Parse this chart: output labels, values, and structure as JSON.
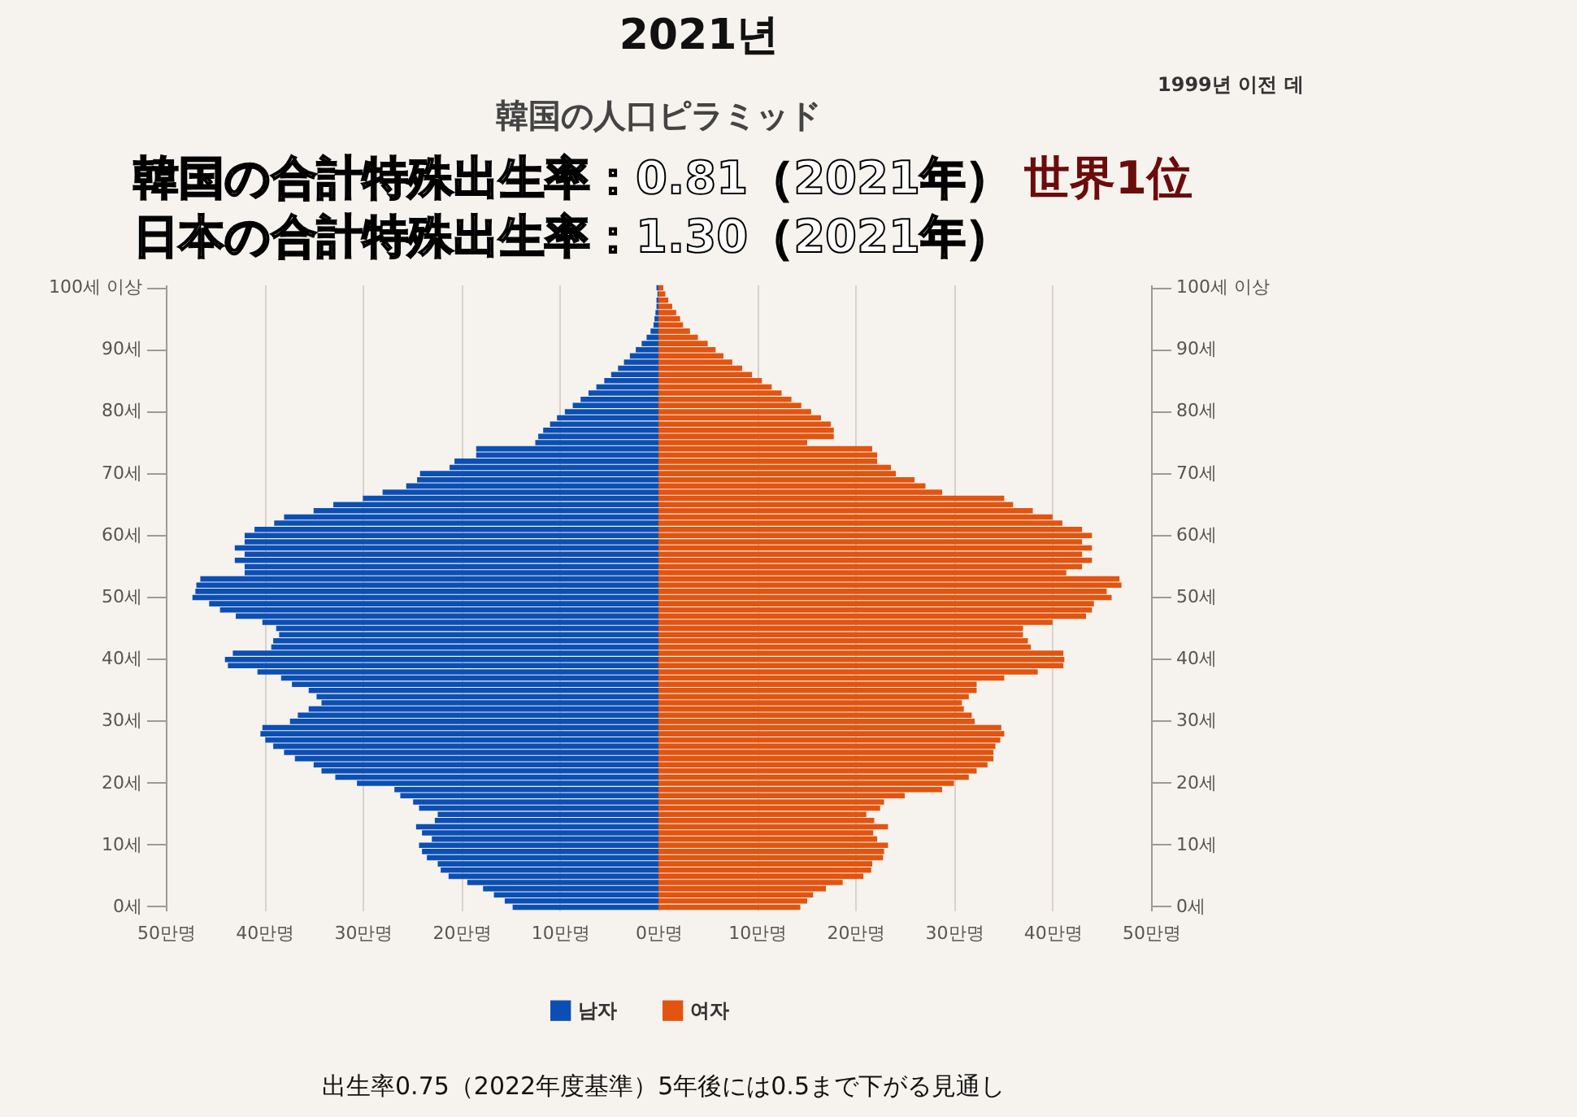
{
  "chart_data": {
    "type": "bar",
    "orientation": "horizontal",
    "stacked": true,
    "title": "韓国の人口ピラミッド",
    "annotations": [
      "2021년",
      "1999년 이전 데",
      "韓国の合計特殊出生率：0.81（2021年）",
      "世界1位",
      "日本の合計特殊出生率：1.30（2021年）",
      "出生率0.75（2022年度基準）5年後には0.5まで下がる見通し"
    ],
    "categories": [
      "100세 이상",
      null,
      null,
      null,
      null,
      null,
      null,
      null,
      null,
      null,
      "90세",
      null,
      null,
      null,
      null,
      null,
      null,
      null,
      null,
      null,
      "80세",
      null,
      null,
      null,
      null,
      null,
      null,
      null,
      null,
      null,
      "70세",
      null,
      null,
      null,
      null,
      null,
      null,
      null,
      null,
      null,
      "60세",
      null,
      null,
      null,
      null,
      null,
      null,
      null,
      null,
      null,
      "50세",
      null,
      null,
      null,
      null,
      null,
      null,
      null,
      null,
      null,
      "40세",
      null,
      null,
      null,
      null,
      null,
      null,
      null,
      null,
      null,
      "30세",
      null,
      null,
      null,
      null,
      null,
      null,
      null,
      null,
      null,
      "20세",
      null,
      null,
      null,
      null,
      null,
      null,
      null,
      null,
      null,
      "10세",
      null,
      null,
      null,
      null,
      null,
      null,
      null,
      null,
      null,
      "0세"
    ],
    "series": [
      {
        "name": "남자",
        "color": "#0b4fb5",
        "values": [
          -0.2,
          -0.1,
          -0.2,
          -0.2,
          -0.3,
          -0.4,
          -0.5,
          -0.8,
          -1.2,
          -1.7,
          -2.3,
          -2.9,
          -3.5,
          -4.1,
          -4.8,
          -5.5,
          -6.3,
          -7.1,
          -7.9,
          -8.7,
          -9.5,
          -10.3,
          -11.0,
          -11.7,
          -12.2,
          -12.5,
          -18.5,
          -18.5,
          -20.7,
          -21.2,
          -24.2,
          -24.5,
          -25.6,
          -28.0,
          -30.0,
          -33.0,
          -35.0,
          -38.0,
          -39.0,
          -41.0,
          -42.0,
          -42.0,
          -43.0,
          -42.0,
          -43.0,
          -42.0,
          -42.0,
          -46.5,
          -46.9,
          -47.0,
          -47.3,
          -45.6,
          -44.5,
          -42.9,
          -40.2,
          -38.8,
          -38.5,
          -39.1,
          -39.3,
          -43.2,
          -44.0,
          -43.7,
          -40.7,
          -38.3,
          -37.2,
          -35.5,
          -34.7,
          -34.2,
          -35.5,
          -36.6,
          -37.4,
          -40.2,
          -40.4,
          -39.9,
          -39.1,
          -38.0,
          -36.9,
          -35.0,
          -34.2,
          -32.8,
          -30.6,
          -26.8,
          -26.2,
          -24.9,
          -24.3,
          -22.4,
          -22.7,
          -24.6,
          -24.0,
          -23.0,
          -24.3,
          -24.0,
          -23.5,
          -22.4,
          -22.1,
          -21.3,
          -19.4,
          -17.8,
          -16.7,
          -15.6,
          -14.8
        ]
      },
      {
        "name": "여자",
        "color": "#e2540f",
        "values": [
          0.5,
          0.7,
          1.0,
          1.4,
          1.8,
          2.2,
          2.5,
          3.2,
          4.0,
          5.0,
          5.8,
          6.6,
          7.5,
          8.5,
          9.5,
          10.5,
          11.5,
          12.5,
          13.5,
          14.5,
          15.5,
          16.5,
          17.5,
          17.8,
          17.8,
          15.1,
          21.7,
          22.2,
          22.2,
          23.6,
          24.1,
          26.0,
          27.1,
          28.8,
          35.1,
          36.0,
          38.0,
          40.0,
          41.0,
          43.0,
          44.0,
          43.0,
          44.0,
          43.0,
          44.0,
          43.0,
          41.4,
          46.8,
          47.0,
          45.5,
          46.0,
          44.2,
          44.0,
          43.4,
          40.0,
          37.0,
          37.0,
          37.5,
          37.8,
          41.1,
          41.2,
          41.1,
          38.5,
          35.1,
          32.3,
          32.3,
          31.5,
          30.8,
          31.0,
          31.8,
          32.1,
          34.8,
          35.1,
          34.7,
          34.2,
          34.0,
          34.0,
          33.4,
          32.3,
          31.5,
          30.0,
          28.8,
          25.0,
          22.9,
          22.5,
          21.1,
          21.9,
          23.3,
          21.8,
          22.2,
          23.3,
          22.9,
          22.8,
          21.7,
          21.6,
          20.8,
          18.7,
          17.0,
          15.7,
          15.1,
          14.4
        ]
      }
    ],
    "xlim": [
      -50,
      50
    ],
    "xticks": [
      {
        "value": -50,
        "label": "50만명"
      },
      {
        "value": -40,
        "label": "40만명"
      },
      {
        "value": -30,
        "label": "30만명"
      },
      {
        "value": -20,
        "label": "20만명"
      },
      {
        "value": -10,
        "label": "10만명"
      },
      {
        "value": 0,
        "label": "0만명"
      },
      {
        "value": 10,
        "label": "10만명"
      },
      {
        "value": 20,
        "label": "20만명"
      },
      {
        "value": 30,
        "label": "30만명"
      },
      {
        "value": 40,
        "label": "40만명"
      },
      {
        "value": 50,
        "label": "50만명"
      }
    ],
    "grid": "x",
    "legend": "bottom"
  }
}
